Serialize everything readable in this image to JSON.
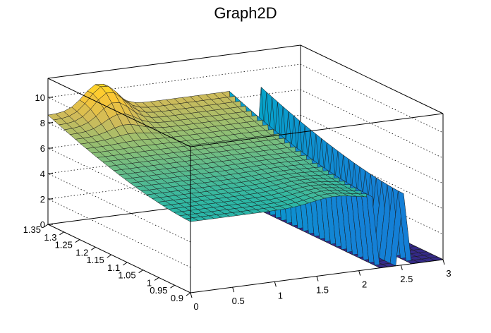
{
  "chart_data": {
    "type": "surface",
    "title": "Graph2D",
    "x_axis": {
      "range": [
        0,
        3
      ],
      "ticks": [
        "0",
        "0.5",
        "1",
        "1.5",
        "2",
        "2.5",
        "3"
      ]
    },
    "y_axis": {
      "range": [
        0.9,
        1.35
      ],
      "ticks": [
        "0.9",
        "0.95",
        "1",
        "1.05",
        "1.1",
        "1.15",
        "1.2",
        "1.25",
        "1.3",
        "1.35"
      ]
    },
    "z_axis": {
      "range": [
        0,
        11.5
      ],
      "ticks": [
        "0",
        "2",
        "4",
        "6",
        "8",
        "10"
      ]
    },
    "grid": true,
    "palette": [
      "#352a87",
      "#0f5cdd",
      "#1481d6",
      "#06a4ca",
      "#2eb7a4",
      "#87bf77",
      "#d1bb59",
      "#fec832",
      "#f9fb0e"
    ],
    "surface_grid": {
      "nx": 32,
      "ny": 26
    },
    "surface_description": {
      "plateau_z": 5.6,
      "plateau_x_range": [
        0.0,
        2.2
      ],
      "right_strip_x_range": [
        2.45,
        2.6
      ],
      "high_y_edge_z": 8.6,
      "peak": {
        "x": 0.6,
        "y": 1.33,
        "z": 10.8
      },
      "zero_outside": true
    }
  }
}
